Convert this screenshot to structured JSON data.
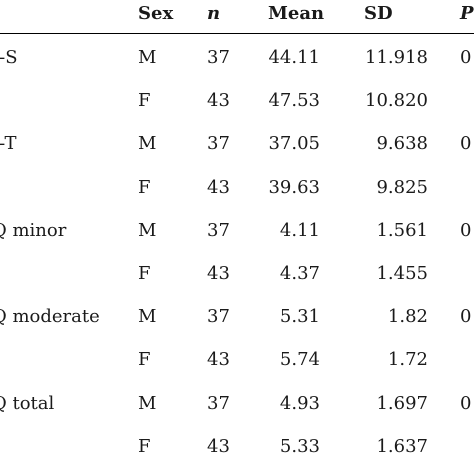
{
  "table": {
    "headers": {
      "sex": "Sex",
      "n": "n",
      "mean": "Mean",
      "sd": "SD",
      "p": "P"
    },
    "rows": [
      {
        "label": "I-S",
        "sex": "M",
        "n": "37",
        "mean": "44.11",
        "sd": "11.918",
        "p": "0"
      },
      {
        "label": "",
        "sex": "F",
        "n": "43",
        "mean": "47.53",
        "sd": "10.820",
        "p": ""
      },
      {
        "label": "I-T",
        "sex": "M",
        "n": "37",
        "mean": "37.05",
        "sd": "9.638",
        "p": "0"
      },
      {
        "label": "",
        "sex": "F",
        "n": "43",
        "mean": "39.63",
        "sd": "9.825",
        "p": ""
      },
      {
        "label": "Q  minor",
        "sex": "M",
        "n": "37",
        "mean": "4.11",
        "sd": "1.561",
        "p": "0"
      },
      {
        "label": "",
        "sex": "F",
        "n": "43",
        "mean": "4.37",
        "sd": "1.455",
        "p": ""
      },
      {
        "label": "Q  moderate",
        "sex": "M",
        "n": "37",
        "mean": "5.31",
        "sd": "1.82",
        "p": "0"
      },
      {
        "label": "",
        "sex": "F",
        "n": "43",
        "mean": "5.74",
        "sd": "1.72",
        "p": ""
      },
      {
        "label": "Q  total",
        "sex": "M",
        "n": "37",
        "mean": "4.93",
        "sd": "1.697",
        "p": "0"
      },
      {
        "label": "",
        "sex": "F",
        "n": "43",
        "mean": "5.33",
        "sd": "1.637",
        "p": ""
      }
    ]
  }
}
